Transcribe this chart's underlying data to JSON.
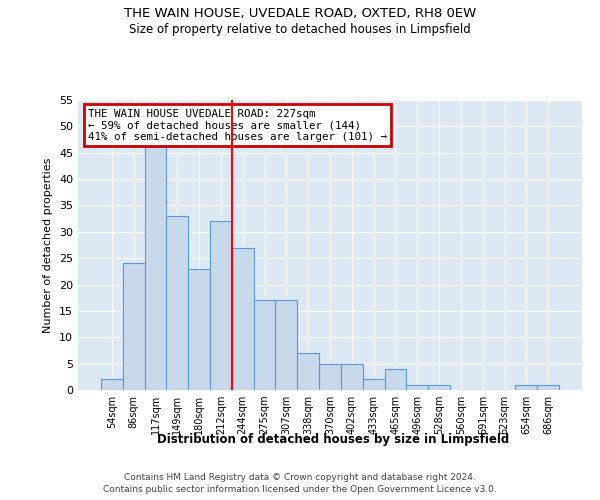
{
  "title_line1": "THE WAIN HOUSE, UVEDALE ROAD, OXTED, RH8 0EW",
  "title_line2": "Size of property relative to detached houses in Limpsfield",
  "xlabel": "Distribution of detached houses by size in Limpsfield",
  "ylabel": "Number of detached properties",
  "bar_labels": [
    "54sqm",
    "86sqm",
    "117sqm",
    "149sqm",
    "180sqm",
    "212sqm",
    "244sqm",
    "275sqm",
    "307sqm",
    "338sqm",
    "370sqm",
    "402sqm",
    "433sqm",
    "465sqm",
    "496sqm",
    "528sqm",
    "560sqm",
    "591sqm",
    "623sqm",
    "654sqm",
    "686sqm"
  ],
  "bar_values": [
    2,
    24,
    46,
    33,
    23,
    32,
    27,
    17,
    17,
    7,
    5,
    5,
    2,
    4,
    1,
    1,
    0,
    0,
    0,
    1,
    1
  ],
  "bar_color": "#c9d9ec",
  "bar_edge_color": "#5b9bd5",
  "reference_line_x": 5.5,
  "annotation_title": "THE WAIN HOUSE UVEDALE ROAD: 227sqm",
  "annotation_line2": "← 59% of detached houses are smaller (144)",
  "annotation_line3": "41% of semi-detached houses are larger (101) →",
  "annotation_box_edgecolor": "#cc0000",
  "ylim": [
    0,
    55
  ],
  "yticks": [
    0,
    5,
    10,
    15,
    20,
    25,
    30,
    35,
    40,
    45,
    50,
    55
  ],
  "bg_color": "#dde8f5",
  "footer_line1": "Contains HM Land Registry data © Crown copyright and database right 2024.",
  "footer_line2": "Contains public sector information licensed under the Open Government Licence v3.0."
}
